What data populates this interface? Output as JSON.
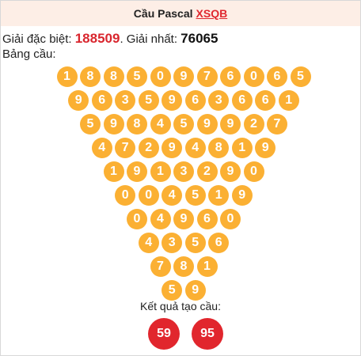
{
  "header": {
    "title": "Cầu Pascal",
    "link": "XSQB"
  },
  "prizes": {
    "special_label": "Giải đặc biệt: ",
    "special_value": "188509",
    "separator": ". ",
    "first_label": "Giải nhất: ",
    "first_value": "76065"
  },
  "table_label": "Bảng cầu:",
  "pascal_rows": [
    [
      "1",
      "8",
      "8",
      "5",
      "0",
      "9",
      "7",
      "6",
      "0",
      "6",
      "5"
    ],
    [
      "9",
      "6",
      "3",
      "5",
      "9",
      "6",
      "3",
      "6",
      "6",
      "1"
    ],
    [
      "5",
      "9",
      "8",
      "4",
      "5",
      "9",
      "9",
      "2",
      "7"
    ],
    [
      "4",
      "7",
      "2",
      "9",
      "4",
      "8",
      "1",
      "9"
    ],
    [
      "1",
      "9",
      "1",
      "3",
      "2",
      "9",
      "0"
    ],
    [
      "0",
      "0",
      "4",
      "5",
      "1",
      "9"
    ],
    [
      "0",
      "4",
      "9",
      "6",
      "0"
    ],
    [
      "4",
      "3",
      "5",
      "6"
    ],
    [
      "7",
      "8",
      "1"
    ],
    [
      "5",
      "9"
    ]
  ],
  "result_label": "Kết quả tạo cầu:",
  "results": [
    "59",
    "95"
  ],
  "colors": {
    "ball": "#fbb033",
    "result_ball": "#e1262d",
    "special": "#d9262e",
    "header_bg": "#fdeee6"
  }
}
